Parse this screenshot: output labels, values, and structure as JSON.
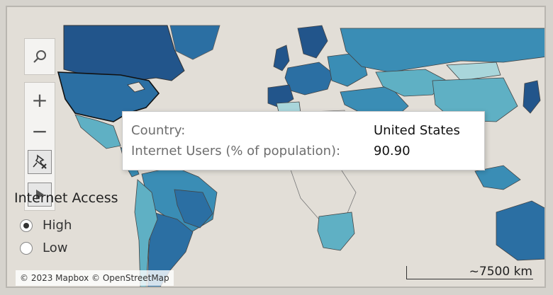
{
  "map": {
    "ocean_color": "#e2ded7",
    "color_scale": [
      "#a9d6db",
      "#5fb0c4",
      "#3a8db5",
      "#2b6fa3",
      "#22558b"
    ],
    "border_color": "#4a4a4a"
  },
  "controls": {
    "search_icon": "search-icon",
    "zoom_in_label": "+",
    "zoom_out_label": "−",
    "pin_icon": "unpin-icon",
    "play_icon": "play-icon"
  },
  "legend": {
    "title": "Internet Access",
    "options": [
      {
        "label": "High",
        "selected": true
      },
      {
        "label": "Low",
        "selected": false
      }
    ]
  },
  "tooltip": {
    "rows": [
      {
        "label": "Country:",
        "value": "United States"
      },
      {
        "label": "Internet Users (% of population):",
        "value": "90.90"
      }
    ]
  },
  "attribution": "© 2023 Mapbox © OpenStreetMap",
  "scale_bar": "~7500 km"
}
